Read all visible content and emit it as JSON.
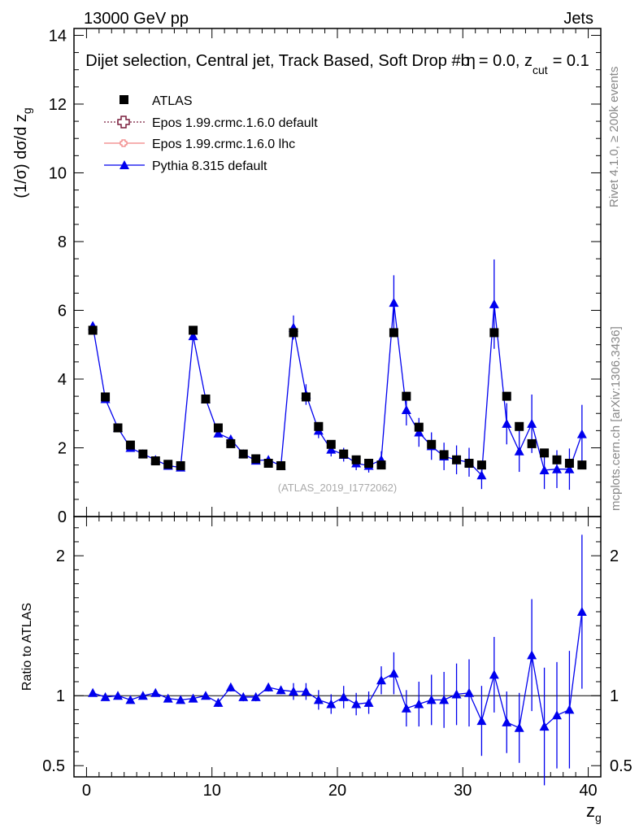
{
  "header": {
    "left": "13000 GeV pp",
    "right": "Jets"
  },
  "side_labels": {
    "rivet": "Rivet 4.1.0, ≥ 200k events",
    "mcplots": "mcplots.cern.ch [arXiv:1306.3436]"
  },
  "colors": {
    "atlas": "#000000",
    "epos_default": "#7a1f3d",
    "epos_lhc": "#f08080",
    "pythia": "#0000ee"
  },
  "chart_data": [
    {
      "type": "scatter",
      "panel": "main",
      "title": "Dijet selection, Central jet, Track Based, Soft Drop #b",
      "title_suffix": "= 0.0, z",
      "title_sub": "cut",
      "title_end": "= 0.1",
      "title_glyph": "η",
      "xlabel": "z",
      "xlabel_sub": "g",
      "ylabel": "(1/σ) dσ/d z",
      "ylabel_sub": "g",
      "watermark": "(ATLAS_2019_I1772062)",
      "xlim": [
        -1,
        41
      ],
      "ylim": [
        0,
        14.2
      ],
      "x_ticks": [
        0,
        10,
        20,
        30,
        40
      ],
      "x_tick_labels": [
        "0",
        "10",
        "20",
        "30",
        "40"
      ],
      "y_ticks": [
        0,
        2,
        4,
        6,
        8,
        10,
        12,
        14
      ],
      "y_tick_labels": [
        "0",
        "2",
        "4",
        "6",
        "8",
        "10",
        "12",
        "14"
      ],
      "legend": [
        "ATLAS",
        "Epos 1.99.crmc.1.6.0 default",
        "Epos 1.99.crmc.1.6.0 lhc",
        "Pythia 8.315 default"
      ],
      "x": [
        0.5,
        1.5,
        2.5,
        3.5,
        4.5,
        5.5,
        6.5,
        7.5,
        8.5,
        9.5,
        10.5,
        11.5,
        12.5,
        13.5,
        14.5,
        15.5,
        16.5,
        17.5,
        18.5,
        19.5,
        20.5,
        21.5,
        22.5,
        23.5,
        24.5,
        25.5,
        26.5,
        27.5,
        28.5,
        29.5,
        30.5,
        31.5,
        32.5,
        33.5,
        34.5,
        35.5,
        36.5,
        37.5,
        38.5,
        39.5
      ],
      "series": [
        {
          "name": "ATLAS",
          "values": [
            5.42,
            3.48,
            2.58,
            2.08,
            1.82,
            1.62,
            1.52,
            1.48,
            5.42,
            3.42,
            2.58,
            2.12,
            1.82,
            1.68,
            1.55,
            1.48,
            5.35,
            3.48,
            2.62,
            2.1,
            1.82,
            1.65,
            1.55,
            1.5,
            5.35,
            3.5,
            2.6,
            2.1,
            1.8,
            1.65,
            1.55,
            1.5,
            5.35,
            3.5,
            2.62,
            2.12,
            1.85,
            1.65,
            1.55,
            1.5
          ]
        },
        {
          "name": "Pythia 8.315 default",
          "values": [
            5.55,
            3.42,
            2.58,
            2.0,
            1.82,
            1.65,
            1.48,
            1.43,
            5.25,
            3.42,
            2.42,
            2.25,
            1.82,
            1.63,
            1.65,
            1.48,
            5.5,
            3.55,
            2.5,
            1.95,
            1.8,
            1.55,
            1.48,
            1.65,
            6.22,
            3.1,
            2.45,
            2.05,
            1.75,
            1.65,
            1.58,
            1.2,
            6.18,
            2.7,
            1.9,
            2.7,
            1.35,
            1.38,
            1.38,
            2.4
          ],
          "errors": [
            0.06,
            0.05,
            0.05,
            0.05,
            0.05,
            0.06,
            0.06,
            0.06,
            0.09,
            0.08,
            0.08,
            0.08,
            0.09,
            0.1,
            0.1,
            0.1,
            0.35,
            0.3,
            0.22,
            0.2,
            0.2,
            0.2,
            0.2,
            0.25,
            0.8,
            0.45,
            0.42,
            0.4,
            0.4,
            0.42,
            0.42,
            0.4,
            1.3,
            0.6,
            0.6,
            0.85,
            0.55,
            0.55,
            0.6,
            0.85
          ]
        }
      ]
    },
    {
      "type": "scatter",
      "panel": "ratio",
      "ylabel": "Ratio to ATLAS",
      "ylim": [
        0.42,
        2.28
      ],
      "y_ticks": [
        0.5,
        1,
        2
      ],
      "y_tick_labels": [
        "0.5",
        "1",
        "2"
      ],
      "x": [
        0.5,
        1.5,
        2.5,
        3.5,
        4.5,
        5.5,
        6.5,
        7.5,
        8.5,
        9.5,
        10.5,
        11.5,
        12.5,
        13.5,
        14.5,
        15.5,
        16.5,
        17.5,
        18.5,
        19.5,
        20.5,
        21.5,
        22.5,
        23.5,
        24.5,
        25.5,
        26.5,
        27.5,
        28.5,
        29.5,
        30.5,
        31.5,
        32.5,
        33.5,
        34.5,
        35.5,
        36.5,
        37.5,
        38.5,
        39.5
      ],
      "series": [
        {
          "name": "Pythia 8.315 default",
          "values": [
            1.02,
            0.99,
            1.0,
            0.97,
            1.0,
            1.02,
            0.98,
            0.97,
            0.98,
            1.0,
            0.95,
            1.06,
            0.99,
            0.99,
            1.06,
            1.04,
            1.03,
            1.03,
            0.97,
            0.94,
            0.99,
            0.94,
            0.95,
            1.11,
            1.16,
            0.91,
            0.94,
            0.97,
            0.97,
            1.01,
            1.02,
            0.82,
            1.15,
            0.81,
            0.77,
            1.29,
            0.78,
            0.86,
            0.9,
            1.6
          ],
          "errors": [
            0.02,
            0.02,
            0.02,
            0.02,
            0.02,
            0.02,
            0.02,
            0.02,
            0.02,
            0.02,
            0.03,
            0.03,
            0.03,
            0.03,
            0.03,
            0.03,
            0.06,
            0.06,
            0.07,
            0.07,
            0.08,
            0.08,
            0.08,
            0.1,
            0.15,
            0.13,
            0.16,
            0.18,
            0.2,
            0.22,
            0.24,
            0.25,
            0.27,
            0.22,
            0.25,
            0.4,
            0.42,
            0.38,
            0.42,
            0.55
          ]
        }
      ]
    }
  ]
}
